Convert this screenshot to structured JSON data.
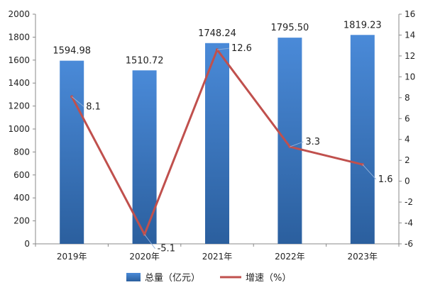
{
  "chart_data": {
    "type": "bar",
    "categories": [
      "2019年",
      "2020年",
      "2021年",
      "2022年",
      "2023年"
    ],
    "series": [
      {
        "name": "总量（亿元）",
        "type": "bar",
        "axis": "left",
        "values": [
          1594.98,
          1510.72,
          1748.24,
          1795.5,
          1819.23
        ],
        "labels": [
          "1594.98",
          "1510.72",
          "1748.24",
          "1795.50",
          "1819.23"
        ],
        "color": "#3a78c4"
      },
      {
        "name": "增速（%）",
        "type": "line",
        "axis": "right",
        "values": [
          8.1,
          -5.1,
          12.6,
          3.3,
          1.6
        ],
        "labels": [
          "8.1",
          "-5.1",
          "12.6",
          "3.3",
          "1.6"
        ],
        "color": "#c0504d"
      }
    ],
    "y_left": {
      "min": 0,
      "max": 2000,
      "step": 200
    },
    "y_right": {
      "min": -6,
      "max": 16,
      "step": 2
    },
    "legend": "bottom",
    "grid": false
  }
}
